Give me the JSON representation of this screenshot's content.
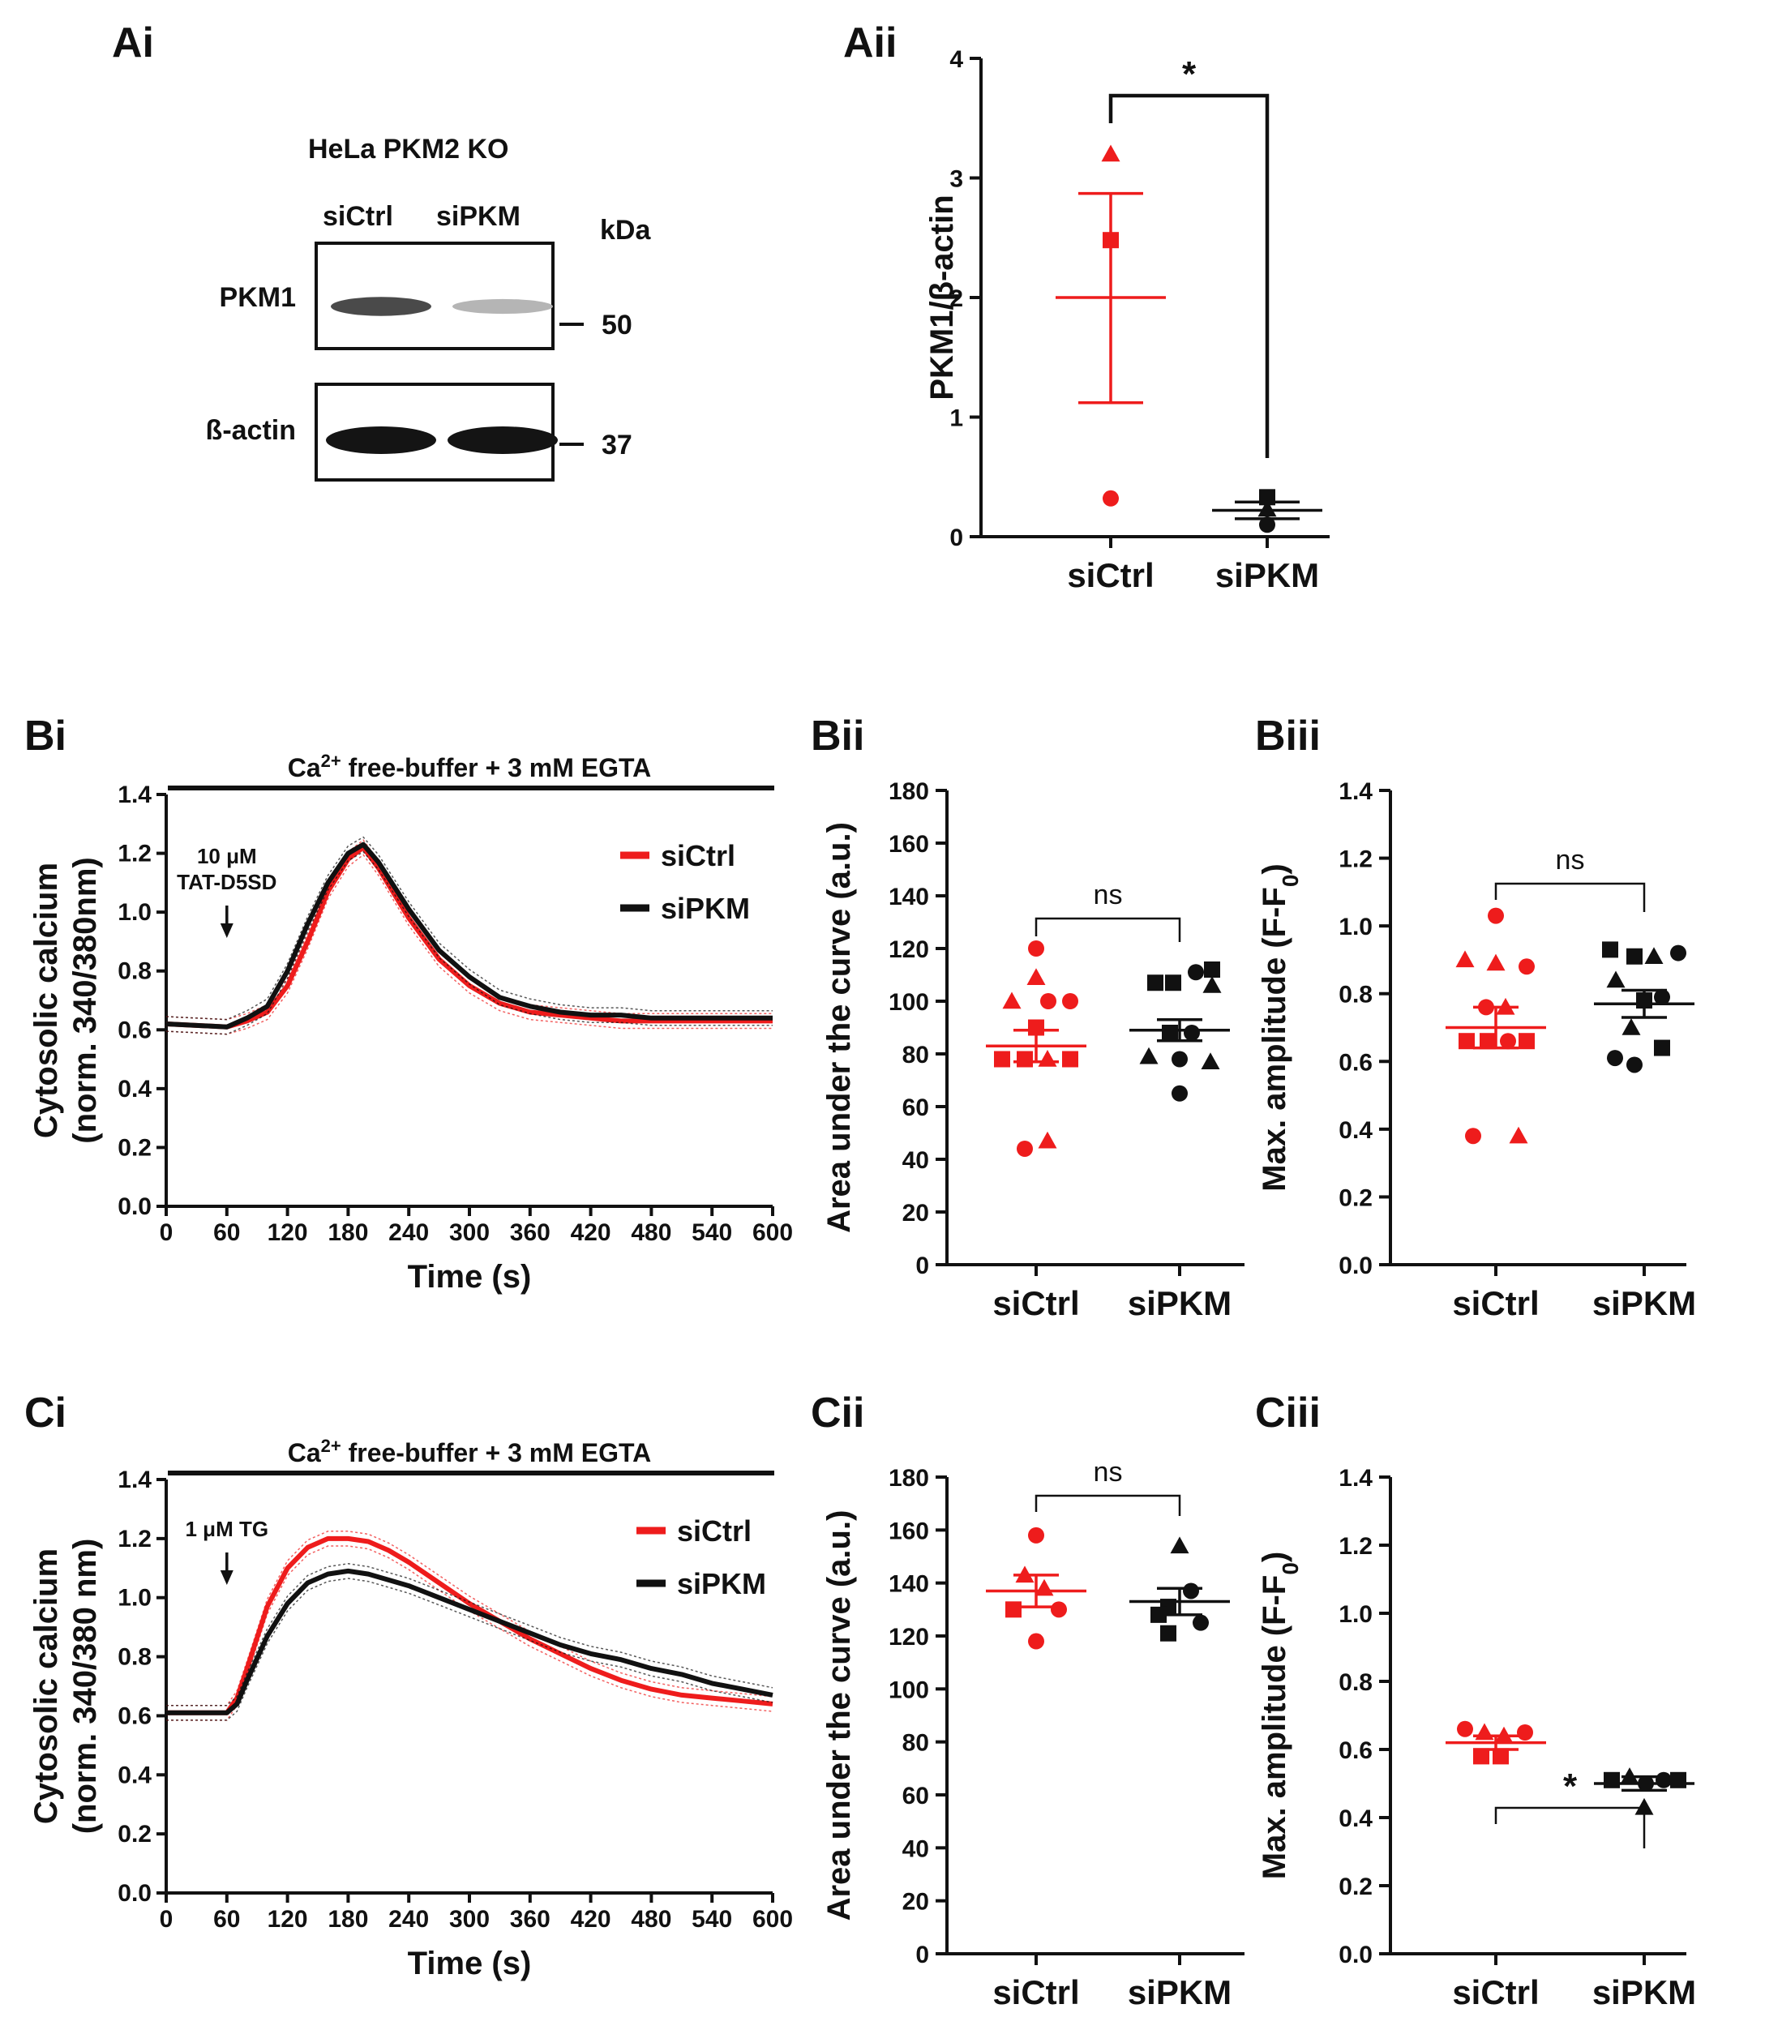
{
  "colors": {
    "siCtrl": "#ee1c1c",
    "siPKM": "#111111",
    "axis": "#111111"
  },
  "panel_labels": {
    "Ai": "Ai",
    "Aii": "Aii",
    "Bi": "Bi",
    "Bii": "Bii",
    "Biii": "Biii",
    "Ci": "Ci",
    "Cii": "Cii",
    "Ciii": "Ciii"
  },
  "western_blot": {
    "title": "HeLa PKM2 KO",
    "lanes": [
      "siCtrl",
      "siPKM"
    ],
    "kda_label": "kDa",
    "rows": [
      {
        "protein": "PKM1",
        "marker": "50",
        "band_intensity": [
          0.75,
          0.25
        ]
      },
      {
        "protein": "ß-actin",
        "marker": "37",
        "band_intensity": [
          1.0,
          1.0
        ]
      }
    ]
  },
  "chart_data": [
    {
      "id": "Aii",
      "type": "scatter",
      "ylabel": "PKM1/β-actin",
      "ylim": [
        0,
        4
      ],
      "yticks": [
        0,
        1,
        2,
        3,
        4
      ],
      "categories": [
        "siCtrl",
        "siPKM"
      ],
      "significance": "*",
      "series": [
        {
          "name": "siCtrl",
          "mean": 2.0,
          "sem_low": 1.12,
          "sem_high": 2.87,
          "points": [
            {
              "shape": "triangle",
              "y": 3.2
            },
            {
              "shape": "square",
              "y": 2.48
            },
            {
              "shape": "circle",
              "y": 0.32
            }
          ]
        },
        {
          "name": "siPKM",
          "mean": 0.22,
          "sem_low": 0.15,
          "sem_high": 0.29,
          "points": [
            {
              "shape": "square",
              "y": 0.33
            },
            {
              "shape": "triangle",
              "y": 0.23
            },
            {
              "shape": "circle",
              "y": 0.1
            }
          ]
        }
      ]
    },
    {
      "id": "Bi",
      "type": "line",
      "xlabel": "Time (s)",
      "ylabel_line1": "Cytosolic calcium",
      "ylabel_line2": "(norm. 340/380nm)",
      "xlim": [
        0,
        600
      ],
      "ylim": [
        0,
        1.4
      ],
      "xticks": [
        0,
        60,
        120,
        180,
        240,
        300,
        360,
        420,
        480,
        540,
        600
      ],
      "yticks": [
        "0.0",
        "0.2",
        "0.4",
        "0.6",
        "0.8",
        "1.0",
        "1.2",
        "1.4"
      ],
      "buffer_label_pre": "Ca",
      "buffer_label_sup": "2+",
      "buffer_label_post": " free-buffer + 3 mM EGTA",
      "annotation_line1": "10 μM",
      "annotation_line2": "TAT-D5SD",
      "annotation_x": 60,
      "series": [
        {
          "name": "siCtrl",
          "x": [
            0,
            60,
            80,
            100,
            120,
            140,
            160,
            180,
            195,
            210,
            240,
            270,
            300,
            330,
            360,
            390,
            420,
            450,
            480,
            540,
            600
          ],
          "y": [
            0.62,
            0.61,
            0.63,
            0.66,
            0.75,
            0.9,
            1.07,
            1.18,
            1.22,
            1.15,
            0.98,
            0.84,
            0.75,
            0.69,
            0.66,
            0.65,
            0.64,
            0.63,
            0.63,
            0.63,
            0.63
          ]
        },
        {
          "name": "siPKM",
          "x": [
            0,
            60,
            80,
            100,
            120,
            140,
            160,
            180,
            195,
            210,
            240,
            270,
            300,
            330,
            360,
            390,
            420,
            450,
            480,
            540,
            600
          ],
          "y": [
            0.62,
            0.61,
            0.64,
            0.68,
            0.8,
            0.96,
            1.1,
            1.2,
            1.23,
            1.17,
            1.01,
            0.87,
            0.78,
            0.71,
            0.68,
            0.66,
            0.65,
            0.65,
            0.64,
            0.64,
            0.64
          ]
        }
      ]
    },
    {
      "id": "Bii",
      "type": "scatter",
      "ylabel": "Area under the curve (a.u.)",
      "ylim": [
        0,
        180
      ],
      "yticks": [
        0,
        20,
        40,
        60,
        80,
        100,
        120,
        140,
        160,
        180
      ],
      "categories": [
        "siCtrl",
        "siPKM"
      ],
      "significance": "ns",
      "series": [
        {
          "name": "siCtrl",
          "mean": 83,
          "sem_low": 77,
          "sem_high": 89,
          "points": [
            {
              "shape": "circle",
              "y": 120,
              "dx": 0
            },
            {
              "shape": "triangle",
              "y": 109,
              "dx": 0
            },
            {
              "shape": "triangle",
              "y": 100,
              "dx": -30
            },
            {
              "shape": "circle",
              "y": 100,
              "dx": 15
            },
            {
              "shape": "circle",
              "y": 100,
              "dx": 42
            },
            {
              "shape": "square",
              "y": 90,
              "dx": 0
            },
            {
              "shape": "square",
              "y": 78,
              "dx": -42
            },
            {
              "shape": "square",
              "y": 78,
              "dx": -14
            },
            {
              "shape": "triangle",
              "y": 78,
              "dx": 14
            },
            {
              "shape": "square",
              "y": 78,
              "dx": 42
            },
            {
              "shape": "circle",
              "y": 44,
              "dx": -14
            },
            {
              "shape": "triangle",
              "y": 47,
              "dx": 14
            }
          ]
        },
        {
          "name": "siPKM",
          "mean": 89,
          "sem_low": 85,
          "sem_high": 93,
          "points": [
            {
              "shape": "square",
              "y": 112,
              "dx": 40
            },
            {
              "shape": "circle",
              "y": 111,
              "dx": 20
            },
            {
              "shape": "square",
              "y": 107,
              "dx": -30
            },
            {
              "shape": "square",
              "y": 107,
              "dx": -8
            },
            {
              "shape": "triangle",
              "y": 106,
              "dx": 40
            },
            {
              "shape": "square",
              "y": 88,
              "dx": -12
            },
            {
              "shape": "circle",
              "y": 88,
              "dx": 15
            },
            {
              "shape": "triangle",
              "y": 79,
              "dx": -38
            },
            {
              "shape": "triangle",
              "y": 77,
              "dx": 38
            },
            {
              "shape": "circle",
              "y": 78,
              "dx": 0
            },
            {
              "shape": "circle",
              "y": 65,
              "dx": 0
            }
          ]
        }
      ]
    },
    {
      "id": "Biii",
      "type": "scatter",
      "ylabel_main": "Max. amplitude (F-F",
      "ylabel_sub": "0",
      "ylabel_end": ")",
      "ylim": [
        0,
        1.4
      ],
      "yticks": [
        "0.0",
        "0.2",
        "0.4",
        "0.6",
        "0.8",
        "1.0",
        "1.2",
        "1.4"
      ],
      "categories": [
        "siCtrl",
        "siPKM"
      ],
      "significance": "ns",
      "series": [
        {
          "name": "siCtrl",
          "mean": 0.7,
          "sem_low": 0.64,
          "sem_high": 0.76,
          "points": [
            {
              "shape": "circle",
              "y": 1.03,
              "dx": 0
            },
            {
              "shape": "triangle",
              "y": 0.9,
              "dx": -38
            },
            {
              "shape": "triangle",
              "y": 0.89,
              "dx": 0
            },
            {
              "shape": "circle",
              "y": 0.88,
              "dx": 38
            },
            {
              "shape": "circle",
              "y": 0.76,
              "dx": -12
            },
            {
              "shape": "triangle",
              "y": 0.76,
              "dx": 12
            },
            {
              "shape": "square",
              "y": 0.66,
              "dx": -36
            },
            {
              "shape": "square",
              "y": 0.66,
              "dx": -10
            },
            {
              "shape": "circle",
              "y": 0.66,
              "dx": 15
            },
            {
              "shape": "square",
              "y": 0.66,
              "dx": 38
            },
            {
              "shape": "circle",
              "y": 0.38,
              "dx": -28
            },
            {
              "shape": "triangle",
              "y": 0.38,
              "dx": 28
            }
          ]
        },
        {
          "name": "siPKM",
          "mean": 0.77,
          "sem_low": 0.73,
          "sem_high": 0.81,
          "points": [
            {
              "shape": "square",
              "y": 0.93,
              "dx": -42
            },
            {
              "shape": "square",
              "y": 0.91,
              "dx": -12
            },
            {
              "shape": "triangle",
              "y": 0.91,
              "dx": 12
            },
            {
              "shape": "circle",
              "y": 0.92,
              "dx": 42
            },
            {
              "shape": "triangle",
              "y": 0.84,
              "dx": -35
            },
            {
              "shape": "square",
              "y": 0.78,
              "dx": 0
            },
            {
              "shape": "circle",
              "y": 0.79,
              "dx": 22
            },
            {
              "shape": "triangle",
              "y": 0.7,
              "dx": -16
            },
            {
              "shape": "square",
              "y": 0.64,
              "dx": 22
            },
            {
              "shape": "circle",
              "y": 0.61,
              "dx": -36
            },
            {
              "shape": "circle",
              "y": 0.59,
              "dx": -12
            }
          ]
        }
      ]
    },
    {
      "id": "Ci",
      "type": "line",
      "xlabel": "Time (s)",
      "ylabel_line1": "Cytosolic calcium",
      "ylabel_line2": "(norm. 340/380 nm)",
      "xlim": [
        0,
        600
      ],
      "ylim": [
        0,
        1.4
      ],
      "xticks": [
        0,
        60,
        120,
        180,
        240,
        300,
        360,
        420,
        480,
        540,
        600
      ],
      "yticks": [
        "0.0",
        "0.2",
        "0.4",
        "0.6",
        "0.8",
        "1.0",
        "1.2",
        "1.4"
      ],
      "buffer_label_pre": "Ca",
      "buffer_label_sup": "2+",
      "buffer_label_post": " free-buffer + 3 mM EGTA",
      "annotation_line1": "1 μM TG",
      "annotation_line2": "",
      "annotation_x": 60,
      "series": [
        {
          "name": "siCtrl",
          "x": [
            0,
            60,
            70,
            80,
            100,
            120,
            140,
            160,
            180,
            200,
            220,
            240,
            270,
            300,
            330,
            360,
            390,
            420,
            450,
            480,
            510,
            540,
            570,
            600
          ],
          "y": [
            0.61,
            0.61,
            0.66,
            0.76,
            0.97,
            1.1,
            1.17,
            1.2,
            1.2,
            1.19,
            1.16,
            1.12,
            1.05,
            0.98,
            0.92,
            0.86,
            0.81,
            0.76,
            0.72,
            0.69,
            0.67,
            0.66,
            0.65,
            0.64
          ]
        },
        {
          "name": "siPKM",
          "x": [
            0,
            60,
            70,
            80,
            100,
            120,
            140,
            160,
            180,
            200,
            220,
            240,
            270,
            300,
            330,
            360,
            390,
            420,
            450,
            480,
            510,
            540,
            570,
            600
          ],
          "y": [
            0.61,
            0.61,
            0.64,
            0.72,
            0.87,
            0.98,
            1.05,
            1.08,
            1.09,
            1.08,
            1.06,
            1.04,
            1.0,
            0.96,
            0.92,
            0.88,
            0.84,
            0.81,
            0.79,
            0.76,
            0.74,
            0.71,
            0.69,
            0.67
          ]
        }
      ]
    },
    {
      "id": "Cii",
      "type": "scatter",
      "ylabel": "Area under the curve (a.u.)",
      "ylim": [
        0,
        180
      ],
      "yticks": [
        0,
        20,
        40,
        60,
        80,
        100,
        120,
        140,
        160,
        180
      ],
      "categories": [
        "siCtrl",
        "siPKM"
      ],
      "significance": "ns",
      "series": [
        {
          "name": "siCtrl",
          "mean": 137,
          "sem_low": 131,
          "sem_high": 143,
          "points": [
            {
              "shape": "circle",
              "y": 158,
              "dx": 0
            },
            {
              "shape": "triangle",
              "y": 143,
              "dx": -14
            },
            {
              "shape": "triangle",
              "y": 138,
              "dx": 10
            },
            {
              "shape": "square",
              "y": 130,
              "dx": -28
            },
            {
              "shape": "circle",
              "y": 130,
              "dx": 28
            },
            {
              "shape": "circle",
              "y": 118,
              "dx": 0
            }
          ]
        },
        {
          "name": "siPKM",
          "mean": 133,
          "sem_low": 128,
          "sem_high": 138,
          "points": [
            {
              "shape": "triangle",
              "y": 154,
              "dx": 0
            },
            {
              "shape": "circle",
              "y": 137,
              "dx": 14
            },
            {
              "shape": "square",
              "y": 131,
              "dx": -14
            },
            {
              "shape": "square",
              "y": 128,
              "dx": -26
            },
            {
              "shape": "circle",
              "y": 125,
              "dx": 26
            },
            {
              "shape": "square",
              "y": 121,
              "dx": -14
            }
          ]
        }
      ]
    },
    {
      "id": "Ciii",
      "type": "scatter",
      "ylabel_main": "Max. amplitude (F-F",
      "ylabel_sub": "0",
      "ylabel_end": ")",
      "ylim": [
        0,
        1.4
      ],
      "yticks": [
        "0.0",
        "0.2",
        "0.4",
        "0.6",
        "0.8",
        "1.0",
        "1.2",
        "1.4"
      ],
      "categories": [
        "siCtrl",
        "siPKM"
      ],
      "significance": "*",
      "series": [
        {
          "name": "siCtrl",
          "mean": 0.62,
          "sem_low": 0.6,
          "sem_high": 0.64,
          "points": [
            {
              "shape": "circle",
              "y": 0.66,
              "dx": -38
            },
            {
              "shape": "triangle",
              "y": 0.65,
              "dx": -14
            },
            {
              "shape": "triangle",
              "y": 0.64,
              "dx": 10
            },
            {
              "shape": "circle",
              "y": 0.65,
              "dx": 36
            },
            {
              "shape": "square",
              "y": 0.58,
              "dx": -18
            },
            {
              "shape": "square",
              "y": 0.58,
              "dx": 6
            }
          ]
        },
        {
          "name": "siPKM",
          "mean": 0.5,
          "sem_low": 0.48,
          "sem_high": 0.52,
          "points": [
            {
              "shape": "square",
              "y": 0.51,
              "dx": -40
            },
            {
              "shape": "triangle",
              "y": 0.52,
              "dx": -18
            },
            {
              "shape": "circle",
              "y": 0.5,
              "dx": 2
            },
            {
              "shape": "circle",
              "y": 0.51,
              "dx": 24
            },
            {
              "shape": "square",
              "y": 0.51,
              "dx": 42
            },
            {
              "shape": "triangle",
              "y": 0.43,
              "dx": 0
            }
          ]
        }
      ]
    }
  ]
}
